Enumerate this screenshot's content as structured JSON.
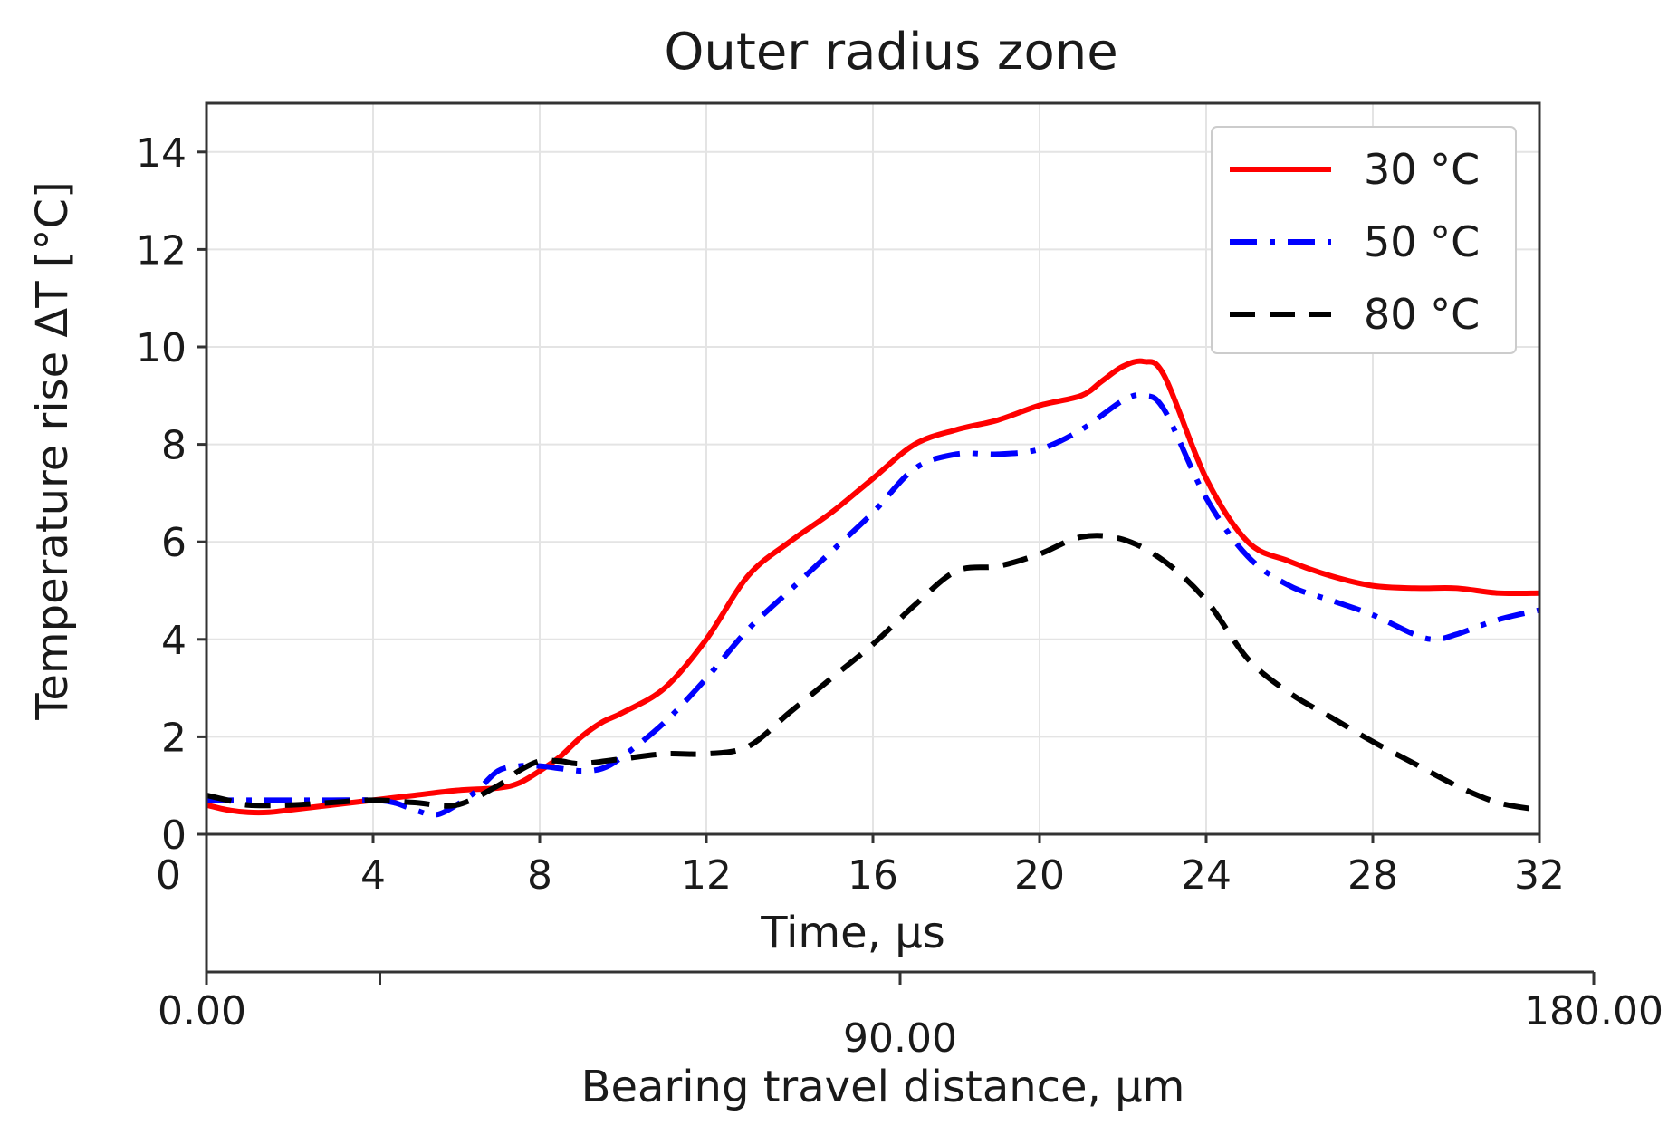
{
  "chart_data": {
    "type": "line",
    "title": "Outer radius zone",
    "xlabel": "Time, µs",
    "ylabel": "Temperature rise ΔT [°C]",
    "xlim": [
      0,
      32
    ],
    "ylim": [
      0,
      15
    ],
    "xticks": [
      0,
      4,
      8,
      12,
      16,
      20,
      24,
      28,
      32
    ],
    "yticks": [
      0,
      2,
      4,
      6,
      8,
      10,
      12,
      14
    ],
    "grid": true,
    "legend_position": "top-right",
    "secondary_x_axis": {
      "label": "Bearing travel distance, µm",
      "range": [
        0,
        180
      ],
      "tick_labels": [
        "0.00",
        "90.00",
        "180.00"
      ],
      "tick_values": [
        0,
        90,
        180
      ],
      "minor_tick_values": [
        22.5
      ]
    },
    "series": [
      {
        "name": "30 °C",
        "color": "#ff0000",
        "style": "solid",
        "x": [
          0,
          0.5,
          1,
          1.5,
          2,
          3,
          4,
          5,
          6,
          7,
          7.5,
          8,
          8.5,
          9,
          9.5,
          10,
          11,
          12,
          13,
          14,
          15,
          16,
          17,
          18,
          19,
          20,
          21,
          21.5,
          22,
          22.5,
          23,
          24,
          25,
          26,
          27,
          28,
          29,
          30,
          31,
          32
        ],
        "y": [
          0.6,
          0.5,
          0.45,
          0.45,
          0.5,
          0.6,
          0.7,
          0.8,
          0.9,
          0.95,
          1.05,
          1.3,
          1.6,
          2.0,
          2.3,
          2.5,
          3.0,
          4.0,
          5.3,
          6.0,
          6.6,
          7.3,
          8.0,
          8.3,
          8.5,
          8.8,
          9.0,
          9.3,
          9.6,
          9.7,
          9.4,
          7.3,
          6.0,
          5.6,
          5.3,
          5.1,
          5.05,
          5.05,
          4.95,
          4.95
        ]
      },
      {
        "name": "50 °C",
        "color": "#0000ff",
        "style": "dashdot",
        "x": [
          0,
          1,
          2,
          3,
          4,
          4.5,
          5,
          5.5,
          6,
          6.5,
          7,
          7.5,
          8,
          8.5,
          9,
          9.5,
          10,
          11,
          12,
          13,
          14,
          15,
          16,
          17,
          18,
          19,
          20,
          21,
          22,
          22.5,
          23,
          24,
          25,
          26,
          27,
          28,
          29,
          29.5,
          30,
          31,
          32
        ],
        "y": [
          0.7,
          0.7,
          0.7,
          0.7,
          0.7,
          0.65,
          0.5,
          0.4,
          0.6,
          0.9,
          1.3,
          1.4,
          1.4,
          1.35,
          1.3,
          1.35,
          1.6,
          2.3,
          3.2,
          4.2,
          5.0,
          5.8,
          6.6,
          7.5,
          7.8,
          7.8,
          7.9,
          8.3,
          8.9,
          9.0,
          8.7,
          6.9,
          5.7,
          5.1,
          4.8,
          4.5,
          4.1,
          4.0,
          4.1,
          4.4,
          4.6
        ]
      },
      {
        "name": "80 °C",
        "color": "#000000",
        "style": "dashed",
        "x": [
          0,
          0.5,
          1,
          2,
          3,
          4,
          5,
          6,
          7,
          7.5,
          8,
          8.5,
          9,
          10,
          11,
          12,
          13,
          14,
          15,
          16,
          17,
          18,
          19,
          20,
          21,
          22,
          23,
          24,
          25,
          26,
          27,
          28,
          29,
          30,
          31,
          32
        ],
        "y": [
          0.8,
          0.7,
          0.6,
          0.6,
          0.65,
          0.7,
          0.65,
          0.6,
          1.0,
          1.3,
          1.5,
          1.5,
          1.45,
          1.55,
          1.65,
          1.65,
          1.8,
          2.5,
          3.2,
          3.9,
          4.7,
          5.4,
          5.5,
          5.75,
          6.1,
          6.05,
          5.6,
          4.8,
          3.6,
          2.9,
          2.4,
          1.9,
          1.45,
          1.0,
          0.65,
          0.5
        ]
      }
    ]
  }
}
